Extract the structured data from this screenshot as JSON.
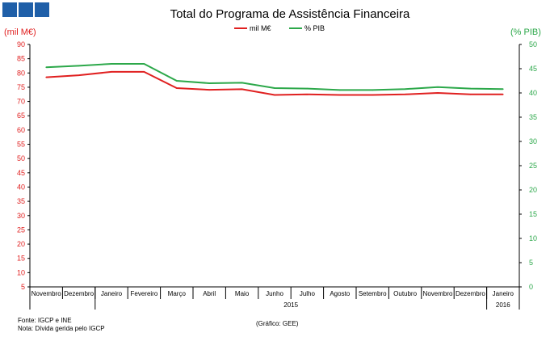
{
  "logo": {
    "color": "#1f5fa8"
  },
  "footer": {
    "source": "Fonte: IGCP e INE",
    "note": "Nota: Dívida gerida pelo IGCP",
    "credit": "(Gráfico: GEE)"
  },
  "chart_data": {
    "type": "line",
    "title": "Total do Programa de Assistência Financeira",
    "ylabel_left": "(mil M€)",
    "ylabel_right": "(% PIB)",
    "ylim_left": [
      5,
      90
    ],
    "yticks_left": [
      5,
      10,
      15,
      20,
      25,
      30,
      35,
      40,
      45,
      50,
      55,
      60,
      65,
      70,
      75,
      80,
      85,
      90
    ],
    "ylim_right": [
      0,
      50
    ],
    "yticks_right": [
      0,
      5,
      10,
      15,
      20,
      25,
      30,
      35,
      40,
      45,
      50
    ],
    "categories": [
      "Novembro",
      "Dezembro",
      "Janeiro",
      "Fevereiro",
      "Março",
      "Abril",
      "Maio",
      "Junho",
      "Julho",
      "Agosto",
      "Setembro",
      "Outubro",
      "Novembro",
      "Dezembro",
      "Janeiro"
    ],
    "year_groups": [
      {
        "label": "2015",
        "start": 2,
        "end": 13
      },
      {
        "label": "2016",
        "start": 14,
        "end": 14
      }
    ],
    "legend_position": "top-center",
    "series": [
      {
        "name": "mil M€",
        "axis": "left",
        "color": "#e02020",
        "values": [
          78.5,
          79.2,
          80.4,
          80.4,
          74.7,
          74.1,
          74.3,
          72.3,
          72.5,
          72.3,
          72.3,
          72.5,
          73.0,
          72.5,
          72.5
        ]
      },
      {
        "name": "% PIB",
        "axis": "right",
        "color": "#2ca84a",
        "values": [
          45.3,
          45.6,
          46.0,
          46.0,
          42.5,
          42.0,
          42.1,
          41.0,
          40.9,
          40.6,
          40.6,
          40.8,
          41.2,
          40.9,
          40.8
        ]
      }
    ]
  }
}
